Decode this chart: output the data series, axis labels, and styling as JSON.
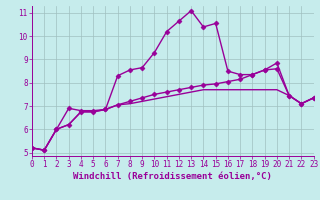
{
  "xlabel": "Windchill (Refroidissement éolien,°C)",
  "bg_color": "#c6ecec",
  "line_color": "#990099",
  "grid_color": "#a0c0c0",
  "x_data": [
    0,
    1,
    2,
    3,
    4,
    5,
    6,
    7,
    8,
    9,
    10,
    11,
    12,
    13,
    14,
    15,
    16,
    17,
    18,
    19,
    20,
    21,
    22,
    23
  ],
  "y_line1": [
    5.2,
    5.1,
    6.0,
    6.9,
    6.8,
    6.8,
    6.85,
    8.3,
    8.55,
    8.65,
    9.3,
    10.2,
    10.65,
    11.1,
    10.4,
    10.55,
    8.5,
    8.35,
    8.35,
    8.55,
    8.85,
    7.45,
    7.1,
    7.35
  ],
  "y_line2": [
    5.2,
    5.1,
    6.0,
    6.2,
    6.75,
    6.75,
    6.85,
    7.05,
    7.2,
    7.35,
    7.5,
    7.6,
    7.7,
    7.8,
    7.9,
    7.95,
    8.05,
    8.15,
    8.35,
    8.55,
    8.6,
    7.45,
    7.1,
    7.35
  ],
  "y_line3": [
    5.2,
    5.1,
    6.0,
    6.2,
    6.75,
    6.75,
    6.85,
    7.05,
    7.1,
    7.2,
    7.3,
    7.4,
    7.5,
    7.6,
    7.7,
    7.7,
    7.7,
    7.7,
    7.7,
    7.7,
    7.7,
    7.45,
    7.1,
    7.35
  ],
  "xlim": [
    0,
    23
  ],
  "ylim": [
    4.85,
    11.3
  ],
  "yticks": [
    5,
    6,
    7,
    8,
    9,
    10,
    11
  ],
  "xticks": [
    0,
    1,
    2,
    3,
    4,
    5,
    6,
    7,
    8,
    9,
    10,
    11,
    12,
    13,
    14,
    15,
    16,
    17,
    18,
    19,
    20,
    21,
    22,
    23
  ],
  "marker": "D",
  "markersize": 2.5,
  "linewidth": 1.0,
  "tick_fontsize": 5.5,
  "xlabel_fontsize": 6.5
}
